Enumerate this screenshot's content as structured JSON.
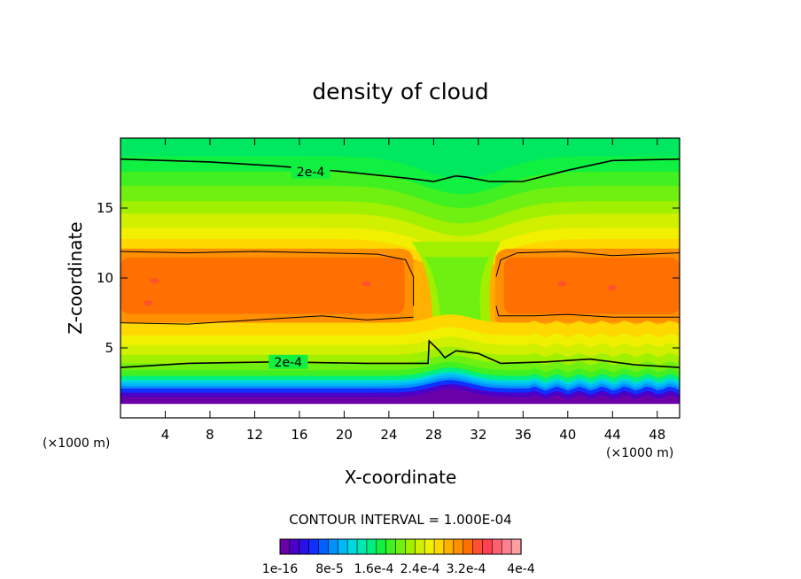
{
  "chart_data": {
    "type": "heatmap",
    "title": "density of cloud",
    "xlabel": "X-coordinate",
    "ylabel": "Z-coordinate",
    "x_unit_left": "(×1000 m)",
    "x_unit_right": "(×1000 m)",
    "xlim": [
      0,
      50
    ],
    "ylim": [
      0,
      20
    ],
    "x_ticks": [
      4,
      8,
      12,
      16,
      20,
      24,
      28,
      32,
      36,
      40,
      44,
      48
    ],
    "y_ticks": [
      5,
      10,
      15
    ],
    "contour_interval_text": "CONTOUR INTERVAL = 1.000E-04",
    "contour_labels": [
      {
        "text": "2e-4",
        "x": 17,
        "z": 17.6
      },
      {
        "text": "2e-4",
        "x": 15,
        "z": 4.0
      }
    ],
    "colorbar": {
      "tick_labels": [
        "1e-16",
        "8e-5",
        "1.6e-4",
        "2.4e-4",
        "3.2e-4",
        "4e-4"
      ],
      "colors": [
        "#6a00a8",
        "#4a00c8",
        "#2a10e8",
        "#1030ff",
        "#0060ff",
        "#0090ff",
        "#00b8f8",
        "#00d8e0",
        "#00e8b0",
        "#00f080",
        "#10f040",
        "#40f020",
        "#70f010",
        "#a0f000",
        "#d0f000",
        "#f0f000",
        "#ffd800",
        "#ffb000",
        "#ff9000",
        "#ff7000",
        "#ff5030",
        "#ff4050",
        "#ff6070",
        "#ff8090",
        "#ff9fa0"
      ]
    },
    "bands": {
      "upper": [
        {
          "z0": 0.8,
          "z1": 19.6,
          "color": "#00e860"
        },
        {
          "z0": 0.8,
          "z1": 18.7,
          "color": "#10f040"
        },
        {
          "z0": 0.8,
          "z1": 17.6,
          "color": "#40f020"
        },
        {
          "z0": 0.8,
          "z1": 16.6,
          "color": "#70f010"
        },
        {
          "z0": 0.8,
          "z1": 15.5,
          "color": "#a0f000"
        },
        {
          "z0": 0.8,
          "z1": 14.6,
          "color": "#d0f000"
        },
        {
          "z0": 0.8,
          "z1": 13.6,
          "color": "#f0f000"
        },
        {
          "z0": 0.8,
          "z1": 12.8,
          "color": "#ffd800"
        },
        {
          "z0": 0.8,
          "z1": 12.1,
          "color": "#ffb000"
        }
      ],
      "lower": [
        {
          "z0": 0.8,
          "z1": 6.8,
          "color": "#ffd800"
        },
        {
          "z0": 0.8,
          "z1": 5.9,
          "color": "#f0f000"
        },
        {
          "z0": 0.8,
          "z1": 5.2,
          "color": "#d0f000"
        },
        {
          "z0": 0.8,
          "z1": 4.5,
          "color": "#a0f000"
        },
        {
          "z0": 0.8,
          "z1": 3.9,
          "color": "#70f010"
        },
        {
          "z0": 0.8,
          "z1": 3.4,
          "color": "#40f020"
        },
        {
          "z0": 0.8,
          "z1": 3.0,
          "color": "#00f080"
        },
        {
          "z0": 0.8,
          "z1": 2.7,
          "color": "#00d8e0"
        },
        {
          "z0": 0.8,
          "z1": 2.5,
          "color": "#00b8f8"
        },
        {
          "z0": 0.8,
          "z1": 2.3,
          "color": "#0090ff"
        },
        {
          "z0": 0.8,
          "z1": 2.1,
          "color": "#1030ff"
        },
        {
          "z0": 0.8,
          "z1": 1.8,
          "color": "#4a00c8"
        },
        {
          "z0": 0.8,
          "z1": 1.5,
          "color": "#6a00a8"
        }
      ]
    },
    "core_left": {
      "x": [
        0,
        26.2
      ],
      "z": [
        6.8,
        12.1
      ],
      "color": "#ff7000"
    },
    "core_right": {
      "x": [
        33.5,
        50
      ],
      "z": [
        6.8,
        12.1
      ],
      "color": "#ff7000"
    },
    "hot_spots": [
      {
        "x": 3,
        "z": 9.8,
        "color": "#ff5030"
      },
      {
        "x": 2.5,
        "z": 8.2,
        "color": "#ff5030"
      },
      {
        "x": 22,
        "z": 9.6,
        "color": "#ff5030"
      },
      {
        "x": 39.5,
        "z": 9.6,
        "color": "#ff5030"
      },
      {
        "x": 44,
        "z": 9.3,
        "color": "#ff5030"
      }
    ],
    "contour_upper": [
      [
        0,
        18.5
      ],
      [
        8,
        18.3
      ],
      [
        14,
        18.0
      ],
      [
        20,
        17.6
      ],
      [
        26,
        17.1
      ],
      [
        28,
        16.9
      ],
      [
        30,
        17.3
      ],
      [
        31,
        17.2
      ],
      [
        33,
        16.9
      ],
      [
        36,
        16.9
      ],
      [
        40,
        17.7
      ],
      [
        44,
        18.4
      ],
      [
        50,
        18.5
      ]
    ],
    "contour_lower": [
      [
        0,
        3.6
      ],
      [
        6,
        3.9
      ],
      [
        14,
        4.0
      ],
      [
        22,
        3.9
      ],
      [
        27.5,
        3.9
      ],
      [
        27.6,
        5.5
      ],
      [
        28.5,
        4.8
      ],
      [
        29,
        4.3
      ],
      [
        30,
        4.8
      ],
      [
        32,
        4.6
      ],
      [
        34,
        3.9
      ],
      [
        38,
        4.0
      ],
      [
        42,
        4.2
      ],
      [
        46,
        3.8
      ],
      [
        50,
        3.6
      ]
    ],
    "contour_core_left_top": [
      [
        0,
        11.9
      ],
      [
        6,
        11.8
      ],
      [
        12,
        11.9
      ],
      [
        18,
        11.8
      ],
      [
        23,
        11.7
      ],
      [
        25.5,
        11.3
      ],
      [
        26.2,
        10.1
      ],
      [
        26.2,
        8.0
      ]
    ],
    "contour_core_left_bottom": [
      [
        0,
        6.8
      ],
      [
        6,
        6.7
      ],
      [
        12,
        7.0
      ],
      [
        18,
        7.3
      ],
      [
        22,
        7.0
      ],
      [
        26.2,
        7.2
      ]
    ],
    "contour_core_right_top": [
      [
        33.6,
        10.1
      ],
      [
        34,
        11.3
      ],
      [
        35.5,
        11.8
      ],
      [
        40,
        11.9
      ],
      [
        44,
        11.6
      ],
      [
        50,
        11.8
      ]
    ],
    "contour_core_right_bottom": [
      [
        33.6,
        8.0
      ],
      [
        33.8,
        7.3
      ],
      [
        37,
        7.3
      ],
      [
        40,
        7.4
      ],
      [
        44,
        7.2
      ],
      [
        50,
        7.2
      ]
    ]
  }
}
